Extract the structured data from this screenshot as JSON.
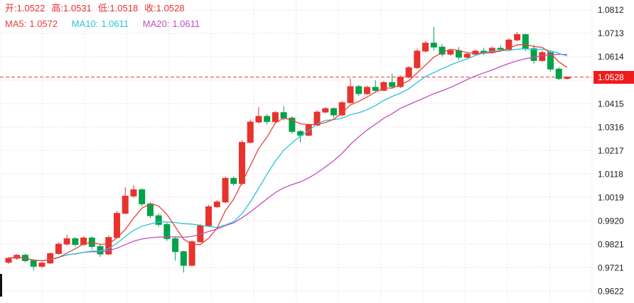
{
  "legend": {
    "ohlc": {
      "open_label": "开:",
      "open_value": "1.0522",
      "high_label": "高:",
      "high_value": "1.0531",
      "low_label": "低:",
      "low_value": "1.0518",
      "close_label": "收:",
      "close_value": "1.0528"
    },
    "ma5_label": "MA5:",
    "ma5_value": "1.0572",
    "ma10_label": "MA10:",
    "ma10_value": "1.0611",
    "ma20_label": "MA20:",
    "ma20_value": "1.0611"
  },
  "axis": {
    "current_price": "1.0528"
  },
  "chart_data": {
    "type": "candlestick",
    "title": "",
    "xlabel": "",
    "ylabel": "",
    "grid": true,
    "legend_position": "top-left",
    "candle_convention": "red=up green=down (CN)",
    "last_candle": {
      "open": 1.0522,
      "high": 1.0531,
      "low": 1.0518,
      "close": 1.0528
    },
    "current_price": 1.0528,
    "ma": {
      "MA5": 1.0572,
      "MA10": 1.0611,
      "MA20": 1.0611
    },
    "y_axis": {
      "max": 1.0812,
      "min": 0.9622,
      "step": 0.0099,
      "tick_labels": [
        "1.0812",
        "1.0713",
        "1.0614",
        "1.0415",
        "1.0316",
        "1.0217",
        "1.0118",
        "1.0019",
        "0.9920",
        "0.9821",
        "0.9721",
        "0.9622"
      ],
      "current_price_label": "1.0528"
    },
    "colors": {
      "up": "#e8322c",
      "down": "#00a24a",
      "ma5": "#e8413c",
      "ma10": "#29c4d8",
      "ma20": "#c14ec1",
      "grid": "#f5caca",
      "price_line": "#e03a3a",
      "price_tag_bg": "#ee1c1c",
      "legend_text": "#e53333",
      "axis_text": "#1a1a1a"
    },
    "candles": [
      [
        0.9745,
        0.9768,
        0.9738,
        0.9762
      ],
      [
        0.9762,
        0.978,
        0.9755,
        0.9775
      ],
      [
        0.9775,
        0.9782,
        0.9745,
        0.9752
      ],
      [
        0.9752,
        0.9758,
        0.9712,
        0.9728
      ],
      [
        0.9728,
        0.9748,
        0.972,
        0.9742
      ],
      [
        0.9742,
        0.9788,
        0.9738,
        0.9782
      ],
      [
        0.9782,
        0.983,
        0.9778,
        0.9822
      ],
      [
        0.9822,
        0.9862,
        0.9815,
        0.9845
      ],
      [
        0.9845,
        0.9852,
        0.9812,
        0.982
      ],
      [
        0.982,
        0.9855,
        0.9815,
        0.9848
      ],
      [
        0.9848,
        0.9855,
        0.98,
        0.9812
      ],
      [
        0.9812,
        0.982,
        0.9768,
        0.978
      ],
      [
        0.978,
        0.9858,
        0.9775,
        0.985
      ],
      [
        0.985,
        0.9962,
        0.9845,
        0.9952
      ],
      [
        0.9952,
        1.0062,
        0.9948,
        1.0025
      ],
      [
        1.0025,
        1.0072,
        1.0018,
        1.0052
      ],
      [
        1.0052,
        1.0058,
        0.9982,
        0.9992
      ],
      [
        0.9992,
        1.0,
        0.9932,
        0.9942
      ],
      [
        0.9942,
        0.9952,
        0.9895,
        0.9905
      ],
      [
        0.9905,
        0.9912,
        0.9835,
        0.9845
      ],
      [
        0.9845,
        0.9852,
        0.9752,
        0.979
      ],
      [
        0.979,
        0.9795,
        0.9702,
        0.9732
      ],
      [
        0.9732,
        0.9838,
        0.9728,
        0.9832
      ],
      [
        0.9832,
        0.9908,
        0.9828,
        0.99
      ],
      [
        0.99,
        0.9988,
        0.9895,
        0.998
      ],
      [
        0.998,
        1.0008,
        0.9975,
        1.0
      ],
      [
        1.0,
        1.0108,
        0.9995,
        1.01
      ],
      [
        1.01,
        1.0108,
        1.0068,
        1.0078
      ],
      [
        1.0078,
        1.0262,
        1.0072,
        1.0252
      ],
      [
        1.0252,
        1.0348,
        1.0248,
        1.0338
      ],
      [
        1.0338,
        1.0402,
        1.0332,
        1.0362
      ],
      [
        1.0362,
        1.0372,
        1.0328,
        1.034
      ],
      [
        1.034,
        1.0385,
        1.0335,
        1.0378
      ],
      [
        1.0378,
        1.0405,
        1.0345,
        1.0355
      ],
      [
        1.0355,
        1.0362,
        1.0288,
        1.0298
      ],
      [
        1.0298,
        1.0305,
        1.0252,
        1.0282
      ],
      [
        1.0282,
        1.0332,
        1.0278,
        1.0325
      ],
      [
        1.0325,
        1.0388,
        1.032,
        1.038
      ],
      [
        1.038,
        1.0402,
        1.0375,
        1.0395
      ],
      [
        1.0395,
        1.04,
        1.0358,
        1.0368
      ],
      [
        1.0368,
        1.0428,
        1.0362,
        1.042
      ],
      [
        1.042,
        1.0522,
        1.0415,
        1.0488
      ],
      [
        1.0488,
        1.0495,
        1.0448,
        1.0458
      ],
      [
        1.0458,
        1.0492,
        1.0452,
        1.0485
      ],
      [
        1.0485,
        1.0515,
        1.0462,
        1.0472
      ],
      [
        1.0472,
        1.0512,
        1.0468,
        1.0505
      ],
      [
        1.0505,
        1.0542,
        1.0478,
        1.0488
      ],
      [
        1.0488,
        1.0535,
        1.0482,
        1.0528
      ],
      [
        1.0528,
        1.0575,
        1.0522,
        1.0568
      ],
      [
        1.0568,
        1.0648,
        1.0562,
        1.0638
      ],
      [
        1.0638,
        1.068,
        1.0632,
        1.0672
      ],
      [
        1.0672,
        1.074,
        1.064,
        1.0655
      ],
      [
        1.0655,
        1.0668,
        1.0615,
        1.0625
      ],
      [
        1.0625,
        1.0648,
        1.0618,
        1.064
      ],
      [
        1.064,
        1.0655,
        1.06,
        1.0612
      ],
      [
        1.0612,
        1.0632,
        1.0605,
        1.0625
      ],
      [
        1.0625,
        1.0645,
        1.0618,
        1.0638
      ],
      [
        1.0638,
        1.0652,
        1.0622,
        1.0632
      ],
      [
        1.0632,
        1.0658,
        1.0628,
        1.065
      ],
      [
        1.065,
        1.0662,
        1.0635,
        1.0645
      ],
      [
        1.0645,
        1.0692,
        1.064,
        1.0685
      ],
      [
        1.0685,
        1.0718,
        1.068,
        1.0708
      ],
      [
        1.0708,
        1.0712,
        1.0638,
        1.0648
      ],
      [
        1.0648,
        1.0665,
        1.0585,
        1.0598
      ],
      [
        1.0598,
        1.064,
        1.0592,
        1.0632
      ],
      [
        1.0632,
        1.0638,
        1.0552,
        1.0562
      ],
      [
        1.0562,
        1.057,
        1.0515,
        1.0522
      ],
      [
        1.0522,
        1.0531,
        1.0518,
        1.0528
      ]
    ]
  }
}
